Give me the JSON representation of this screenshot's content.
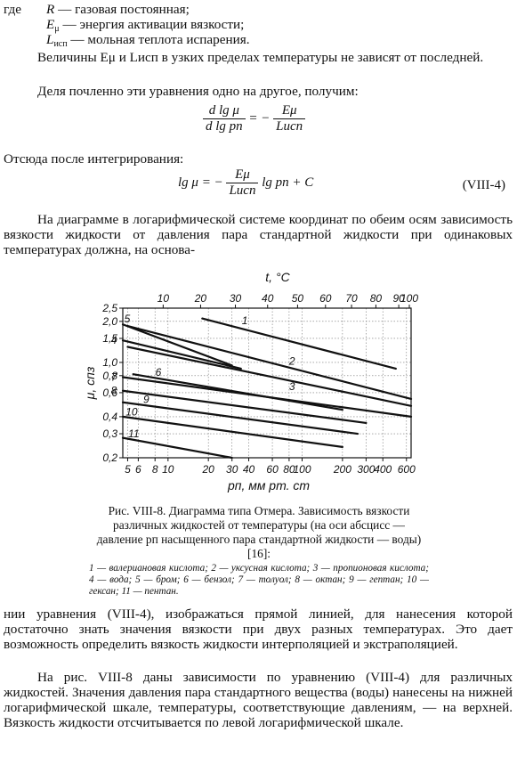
{
  "definitions": [
    {
      "label": "где",
      "symbol": "R",
      "sub": "",
      "text": " — газовая постоянная;"
    },
    {
      "label": "",
      "symbol": "E",
      "sub": "μ",
      "text": " — энергия активации вязкости;"
    },
    {
      "label": "",
      "symbol": "L",
      "sub": "исп",
      "text": " — мольная теплота испарения."
    }
  ],
  "para1": "Величины Eμ и Lисп в узких пределах температуры не зависят от последней.",
  "para2": "Деля почленно эти уравнения одно на другое, получим:",
  "eq1": {
    "left_num": "d lg μ",
    "left_den": "d lg pп",
    "equals": "= −",
    "right_num": "Eμ",
    "right_den": "Lисп"
  },
  "para3": "Отсюда после интегрирования:",
  "eq2": {
    "lhs": "lg μ = −",
    "num": "Eμ",
    "den": "Lисп",
    "rhs": "lg pп + C",
    "number": "(VIII-4)"
  },
  "para4": "На диаграмме в логарифмической системе координат по обеим осям зависимость вязкости жидкости от давления пара стандартной жидкости при одинаковых температурах должна, на основа-",
  "chart_data": {
    "type": "line",
    "title": "",
    "top_axis_label": "t, °C",
    "top_ticks": [
      "10",
      "20",
      "30",
      "40",
      "50",
      "60",
      "70",
      "80",
      "90",
      "100"
    ],
    "bottom_axis_label": "pп, мм рт. ст",
    "bottom_ticks": [
      "5",
      "6",
      "8",
      "10",
      "20",
      "30",
      "40",
      "60",
      "80",
      "100",
      "200",
      "300",
      "400",
      "600"
    ],
    "ylabel": "μ, спз",
    "y_ticks": [
      "2,5",
      "2,0",
      "1,5",
      "1,0",
      "0,8",
      "0,6",
      "0,4",
      "0,3",
      "0,2"
    ],
    "xscale": "log",
    "yscale": "log",
    "xlim": [
      4.6,
      650
    ],
    "ylim": [
      0.2,
      2.5
    ],
    "grid": true,
    "series": [
      {
        "name": "1",
        "x": [
          18,
          500
        ],
        "y": [
          2.1,
          0.9
        ]
      },
      {
        "name": "2",
        "x": [
          5,
          650
        ],
        "y": [
          1.85,
          0.54
        ]
      },
      {
        "name": "3",
        "x": [
          5,
          650
        ],
        "y": [
          1.3,
          0.48
        ]
      },
      {
        "name": "4",
        "x": [
          4.6,
          35
        ],
        "y": [
          1.45,
          0.9
        ]
      },
      {
        "name": "5",
        "x": [
          4.6,
          30
        ],
        "y": [
          1.9,
          0.95
        ]
      },
      {
        "name": "6",
        "x": [
          5.5,
          200
        ],
        "y": [
          0.82,
          0.45
        ]
      },
      {
        "name": "7",
        "x": [
          4.6,
          650
        ],
        "y": [
          0.78,
          0.4
        ]
      },
      {
        "name": "8",
        "x": [
          4.6,
          300
        ],
        "y": [
          0.62,
          0.36
        ]
      },
      {
        "name": "9",
        "x": [
          4.6,
          260
        ],
        "y": [
          0.51,
          0.3
        ]
      },
      {
        "name": "10",
        "x": [
          4.6,
          200
        ],
        "y": [
          0.4,
          0.24
        ]
      },
      {
        "name": "11",
        "x": [
          4.6,
          30
        ],
        "y": [
          0.28,
          0.2
        ]
      }
    ]
  },
  "caption": "Рис. VIII-8. Диаграмма типа Отмера. Зависимость вязкости различных жидкостей от температуры (на оси абсцисс — давление pп насыщенного пара стандартной жидкости — воды) [16]:",
  "legend": "1 — валериановая кислота; 2 — уксусная кислота; 3 — пропионовая кислота; 4 — вода; 5 — бром; 6 — бензол; 7 — толуол; 8 — октан; 9 — гептан; 10 — гексан; 11 — пентан.",
  "para5": "нии уравнения (VIII-4), изображаться прямой линией, для нанесения которой достаточно знать значения вязкости при двух разных температурах. Это дает возможность определить вязкость жидкости интерполяцией и экстраполяцией.",
  "para6": "На рис. VIII-8 даны зависимости по уравнению (VIII-4) для различных жидкостей. Значения давления пара стандартного вещества (воды) нанесены на нижней логарифмической шкале, температуры, соответствующие давлениям, — на верхней. Вязкость жидкости отсчитывается по левой логарифмической шкале."
}
